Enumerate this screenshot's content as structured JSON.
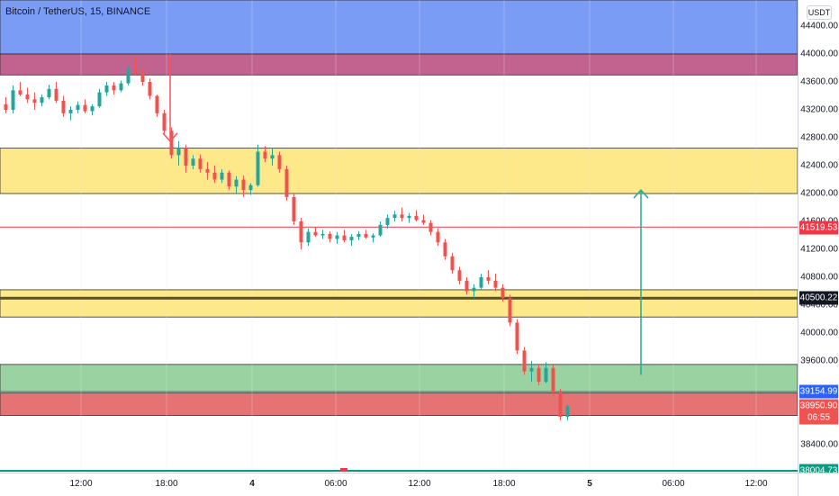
{
  "symbol_legend": "Bitcoin / TetherUS, 15, BINANCE",
  "currency": "USDT",
  "price_axis": {
    "ticks": [
      "44400.00",
      "44000.00",
      "43600.00",
      "43200.00",
      "42800.00",
      "42400.00",
      "42000.00",
      "41600.00",
      "41200.00",
      "40800.00",
      "40400.00",
      "40000.00",
      "39600.00",
      "39200.00",
      "38800.00",
      "38400.00",
      "38004.73"
    ],
    "tick_values": [
      44400,
      44000,
      43600,
      43200,
      42800,
      42400,
      42000,
      41600,
      41200,
      40800,
      40400,
      40000,
      39600,
      39200,
      38800,
      38400,
      38004.73
    ],
    "badges": [
      {
        "label": "41519.53",
        "value": 41519.53,
        "color": "#f23645"
      },
      {
        "label": "40500.22",
        "value": 40500.22,
        "color": "#131722"
      },
      {
        "label": "39154.99",
        "value": 39154.99,
        "color": "#2962ff"
      },
      {
        "label": "38950.90",
        "value": 38950.9,
        "color": "#ef5350"
      },
      {
        "label": "06:55",
        "value": 38800,
        "color": "#ef5350"
      },
      {
        "label": "38004.73",
        "value": 38004.73,
        "color": "#089981"
      }
    ]
  },
  "time_axis": {
    "labels": [
      "12:00",
      "18:00",
      "4",
      "06:00",
      "12:00",
      "18:00",
      "5",
      "06:00",
      "12:00"
    ]
  },
  "zones": [
    {
      "name": "blue-zone",
      "top": 45000,
      "bottom": 44000,
      "color": "#7b9cf5"
    },
    {
      "name": "purple-zone",
      "top": 44000,
      "bottom": 43700,
      "color": "#c2638f"
    },
    {
      "name": "yellow-zone-upper",
      "top": 42650,
      "bottom": 42000,
      "color": "#fde98a"
    },
    {
      "name": "yellow-zone-lower",
      "top": 40620,
      "bottom": 40230,
      "color": "#fde98a"
    },
    {
      "name": "green-zone",
      "top": 39550,
      "bottom": 39160,
      "color": "#9ad3a1"
    },
    {
      "name": "red-zone",
      "top": 39140,
      "bottom": 38820,
      "color": "#e57373"
    }
  ],
  "lines": [
    {
      "name": "red-horizontal-line",
      "value": 41519.53,
      "color": "#f23645",
      "width": 1
    },
    {
      "name": "key-level-line",
      "value": 40500.22,
      "color": "#5b5220",
      "width": 3
    }
  ],
  "arrows": [
    {
      "name": "down-arrow",
      "color": "#f7525f",
      "x": 189,
      "from": 44000,
      "to": 42750
    },
    {
      "name": "up-arrow",
      "color": "#22ab94",
      "x": 712,
      "from": 39400,
      "to": 42050
    }
  ],
  "candles": [
    [
      43280,
      43380,
      43150,
      43200
    ],
    [
      43200,
      43550,
      43150,
      43480
    ],
    [
      43480,
      43600,
      43400,
      43420
    ],
    [
      43420,
      43520,
      43300,
      43350
    ],
    [
      43350,
      43450,
      43200,
      43300
    ],
    [
      43300,
      43420,
      43250,
      43380
    ],
    [
      43380,
      43560,
      43350,
      43500
    ],
    [
      43500,
      43600,
      43300,
      43330
    ],
    [
      43330,
      43400,
      43100,
      43150
    ],
    [
      43150,
      43250,
      43050,
      43200
    ],
    [
      43200,
      43320,
      43150,
      43270
    ],
    [
      43270,
      43350,
      43150,
      43180
    ],
    [
      43180,
      43280,
      43120,
      43250
    ],
    [
      43250,
      43500,
      43230,
      43450
    ],
    [
      43450,
      43600,
      43400,
      43550
    ],
    [
      43550,
      43600,
      43420,
      43480
    ],
    [
      43480,
      43620,
      43450,
      43580
    ],
    [
      43580,
      43820,
      43550,
      43780
    ],
    [
      43780,
      43950,
      43700,
      43720
    ],
    [
      43720,
      43780,
      43550,
      43600
    ],
    [
      43600,
      43650,
      43350,
      43400
    ],
    [
      43400,
      43420,
      43100,
      43150
    ],
    [
      43150,
      43200,
      42850,
      42900
    ],
    [
      42900,
      42950,
      42500,
      42550
    ],
    [
      42550,
      42750,
      42400,
      42650
    ],
    [
      42650,
      42700,
      42300,
      42400
    ],
    [
      42400,
      42550,
      42350,
      42500
    ],
    [
      42500,
      42560,
      42300,
      42350
    ],
    [
      42350,
      42450,
      42200,
      42300
    ],
    [
      42300,
      42400,
      42150,
      42200
    ],
    [
      42200,
      42350,
      42150,
      42300
    ],
    [
      42300,
      42330,
      42050,
      42100
    ],
    [
      42100,
      42250,
      42000,
      42200
    ],
    [
      42200,
      42260,
      41950,
      42050
    ],
    [
      42050,
      42150,
      41980,
      42120
    ],
    [
      42120,
      42700,
      42100,
      42600
    ],
    [
      42600,
      42680,
      42450,
      42500
    ],
    [
      42500,
      42650,
      42400,
      42550
    ],
    [
      42550,
      42600,
      42300,
      42350
    ],
    [
      42350,
      42400,
      41900,
      41950
    ],
    [
      41950,
      42000,
      41550,
      41600
    ],
    [
      41600,
      41650,
      41200,
      41300
    ],
    [
      41300,
      41500,
      41250,
      41450
    ],
    [
      41450,
      41520,
      41380,
      41400
    ],
    [
      41400,
      41480,
      41350,
      41420
    ],
    [
      41420,
      41460,
      41300,
      41350
    ],
    [
      41350,
      41450,
      41280,
      41400
    ],
    [
      41400,
      41480,
      41300,
      41330
    ],
    [
      41330,
      41420,
      41250,
      41380
    ],
    [
      41380,
      41460,
      41330,
      41420
    ],
    [
      41420,
      41480,
      41350,
      41370
    ],
    [
      41370,
      41430,
      41300,
      41400
    ],
    [
      41400,
      41600,
      41380,
      41550
    ],
    [
      41550,
      41700,
      41500,
      41650
    ],
    [
      41650,
      41750,
      41600,
      41700
    ],
    [
      41700,
      41800,
      41600,
      41650
    ],
    [
      41650,
      41720,
      41580,
      41680
    ],
    [
      41680,
      41760,
      41600,
      41620
    ],
    [
      41620,
      41700,
      41550,
      41580
    ],
    [
      41580,
      41620,
      41400,
      41450
    ],
    [
      41450,
      41500,
      41250,
      41300
    ],
    [
      41300,
      41350,
      41050,
      41100
    ],
    [
      41100,
      41150,
      40850,
      40900
    ],
    [
      40900,
      40950,
      40700,
      40750
    ],
    [
      40750,
      40800,
      40550,
      40600
    ],
    [
      40600,
      40700,
      40500,
      40650
    ],
    [
      40650,
      40850,
      40620,
      40800
    ],
    [
      40800,
      40900,
      40700,
      40750
    ],
    [
      40750,
      40850,
      40600,
      40650
    ],
    [
      40650,
      40700,
      40450,
      40500
    ],
    [
      40500,
      40550,
      40100,
      40150
    ],
    [
      40150,
      40200,
      39700,
      39750
    ],
    [
      39750,
      39800,
      39400,
      39450
    ],
    [
      39450,
      39600,
      39300,
      39500
    ],
    [
      39500,
      39550,
      39250,
      39300
    ],
    [
      39300,
      39580,
      39280,
      39500
    ],
    [
      39500,
      39540,
      39100,
      39150
    ],
    [
      39150,
      39200,
      38750,
      38800
    ],
    [
      38800,
      38980,
      38750,
      38950
    ]
  ],
  "candle_colors": {
    "up": "#26a69a",
    "down": "#ef5350"
  }
}
